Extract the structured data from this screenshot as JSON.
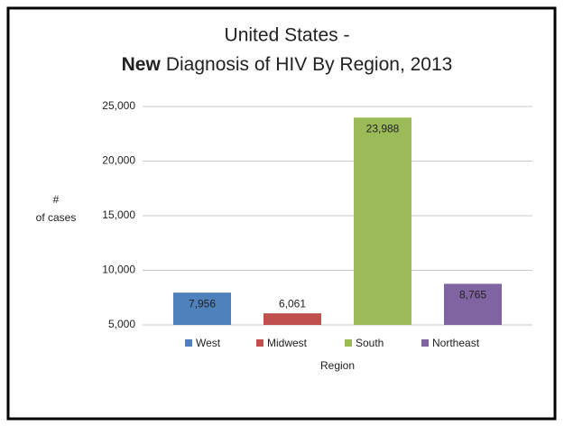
{
  "chart_data": {
    "type": "bar",
    "title": {
      "line1": "United States -",
      "line2_bold": "New",
      "line2": "Diagnosis of HIV By Region, 2013"
    },
    "ylabel": [
      "#",
      "of cases"
    ],
    "xlabel": "Region",
    "categories": [
      "West",
      "Midwest",
      "South",
      "Northeast"
    ],
    "values": [
      7956,
      6061,
      23988,
      8765
    ],
    "value_labels": [
      "7,956",
      "6,061",
      "23,988",
      "8,765"
    ],
    "colors": [
      "#4f81bd",
      "#c0504d",
      "#9bbb59",
      "#8064a2"
    ],
    "ylim": [
      5000,
      25000
    ],
    "yticks": [
      {
        "value": 5000,
        "label": "5,000"
      },
      {
        "value": 10000,
        "label": "10,000"
      },
      {
        "value": 15000,
        "label": "15,000"
      },
      {
        "value": 20000,
        "label": "20,000"
      },
      {
        "value": 25000,
        "label": "25,000"
      }
    ],
    "grid": true,
    "legend": "bottom"
  }
}
